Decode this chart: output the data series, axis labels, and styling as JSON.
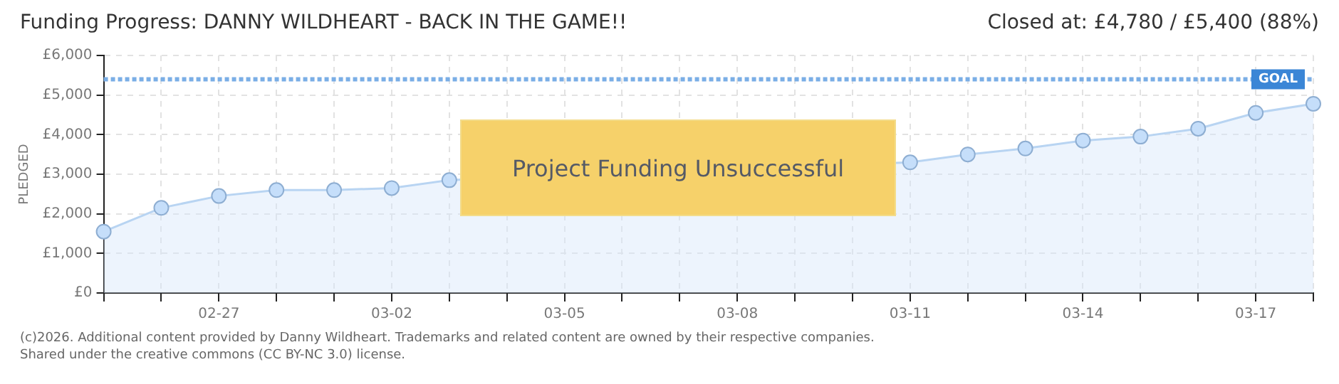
{
  "chart_data": {
    "type": "area",
    "title": "Funding Progress: DANNY WILDHEART - BACK IN THE GAME!!",
    "subtitle": "Closed at: £4,780 / £5,400 (88%)",
    "ylabel": "PLEDGED",
    "categories": [
      null,
      null,
      "02-27",
      null,
      null,
      "03-02",
      null,
      null,
      "03-05",
      null,
      null,
      "03-08",
      null,
      null,
      "03-11",
      null,
      null,
      "03-14",
      null,
      null,
      "03-17",
      null
    ],
    "series": [
      {
        "color": "#b8d4f2",
        "values": [
          1550,
          2150,
          2450,
          2600,
          2600,
          2650,
          2850,
          null,
          null,
          null,
          null,
          null,
          null,
          null,
          3300,
          3500,
          3650,
          3850,
          3950,
          4150,
          4550,
          4780
        ]
      }
    ],
    "ylim": [
      0,
      6000
    ],
    "yticks": [
      {
        "value": 0,
        "label": "£0"
      },
      {
        "value": 1000,
        "label": "£1,000"
      },
      {
        "value": 2000,
        "label": "£2,000"
      },
      {
        "value": 3000,
        "label": "£3,000"
      },
      {
        "value": 4000,
        "label": "£4,000"
      },
      {
        "value": 5000,
        "label": "£5,000"
      },
      {
        "value": 6000,
        "label": "£6,000"
      }
    ],
    "ref_lines": [
      {
        "axis": "y",
        "value": 5400,
        "label": "GOAL",
        "color": "#7aaee6",
        "line_style": "dotted"
      }
    ],
    "grid": true,
    "marker": "circle",
    "annotations": [
      "Project Funding Unsuccessful",
      "(c)2026. Additional content provided by Danny Wildheart. Trademarks and related content are owned by their respective companies.",
      "Shared under the creative commons (CC BY-NC 3.0) license."
    ]
  }
}
